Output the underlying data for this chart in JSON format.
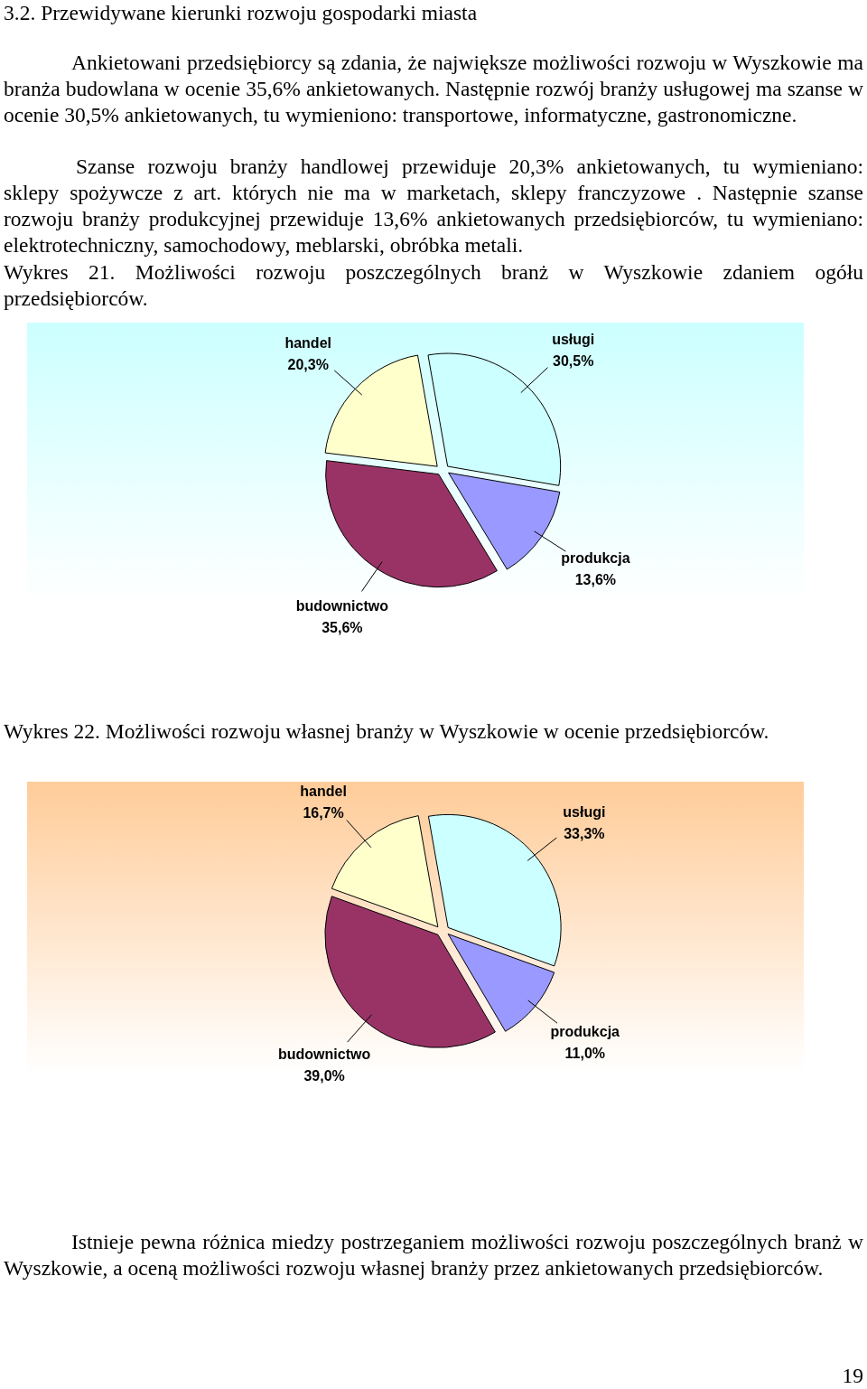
{
  "chart_data": [
    {
      "type": "pie",
      "title": "Wykres 21.  Możliwości rozwoju poszczególnych branż w Wyszkowie zdaniem ogółu przedsiębiorców.",
      "annotations": [
        "3.2. Przewidywane kierunki rozwoju gospodarki miasta",
        "Ankietowani przedsiębiorcy są zdania, że największe możliwości rozwoju w Wyszkowie ma branża budowlana w ocenie 35,6% ankietowanych. Następnie rozwój branży usługowej ma szanse w ocenie 30,5% ankietowanych, tu wymieniono: transportowe, informatyczne, gastronomiczne.",
        "Szanse rozwoju branży handlowej  przewiduje 20,3% ankietowanych, tu wymieniano: sklepy spożywcze z art. których nie ma w marketach, sklepy franczyzowe . Następnie szanse rozwoju branży produkcyjnej przewiduje 13,6% ankietowanych przedsiębiorców, tu wymieniano: elektrotechniczny, samochodowy, meblarski, obróbka metali."
      ],
      "categories": [
        "usługi",
        "produkcja",
        "budownictwo",
        "handel"
      ],
      "values": [
        30.5,
        13.6,
        35.6,
        20.3
      ],
      "value_labels": [
        "30,5%",
        "13,6%",
        "35,6%",
        "20,3%"
      ],
      "colors": [
        "#ccffff",
        "#9999ff",
        "#993366",
        "#ffffcc"
      ]
    },
    {
      "type": "pie",
      "title": "Wykres 22.  Możliwości rozwoju  własnej branży w Wyszkowie w ocenie przedsiębiorców.",
      "annotations": [
        "Istnieje pewna różnica miedzy postrzeganiem możliwości rozwoju poszczególnych branż w Wyszkowie, a oceną możliwości rozwoju własnej branży przez ankietowanych przedsiębiorców.",
        "19"
      ],
      "categories": [
        "usługi",
        "produkcja",
        "budownictwo",
        "handel"
      ],
      "values": [
        33.3,
        11.0,
        39.0,
        16.7
      ],
      "value_labels": [
        "33,3%",
        "11,0%",
        "39,0%",
        "16,7%"
      ],
      "colors": [
        "#ccffff",
        "#9999ff",
        "#993366",
        "#ffffcc"
      ]
    }
  ]
}
